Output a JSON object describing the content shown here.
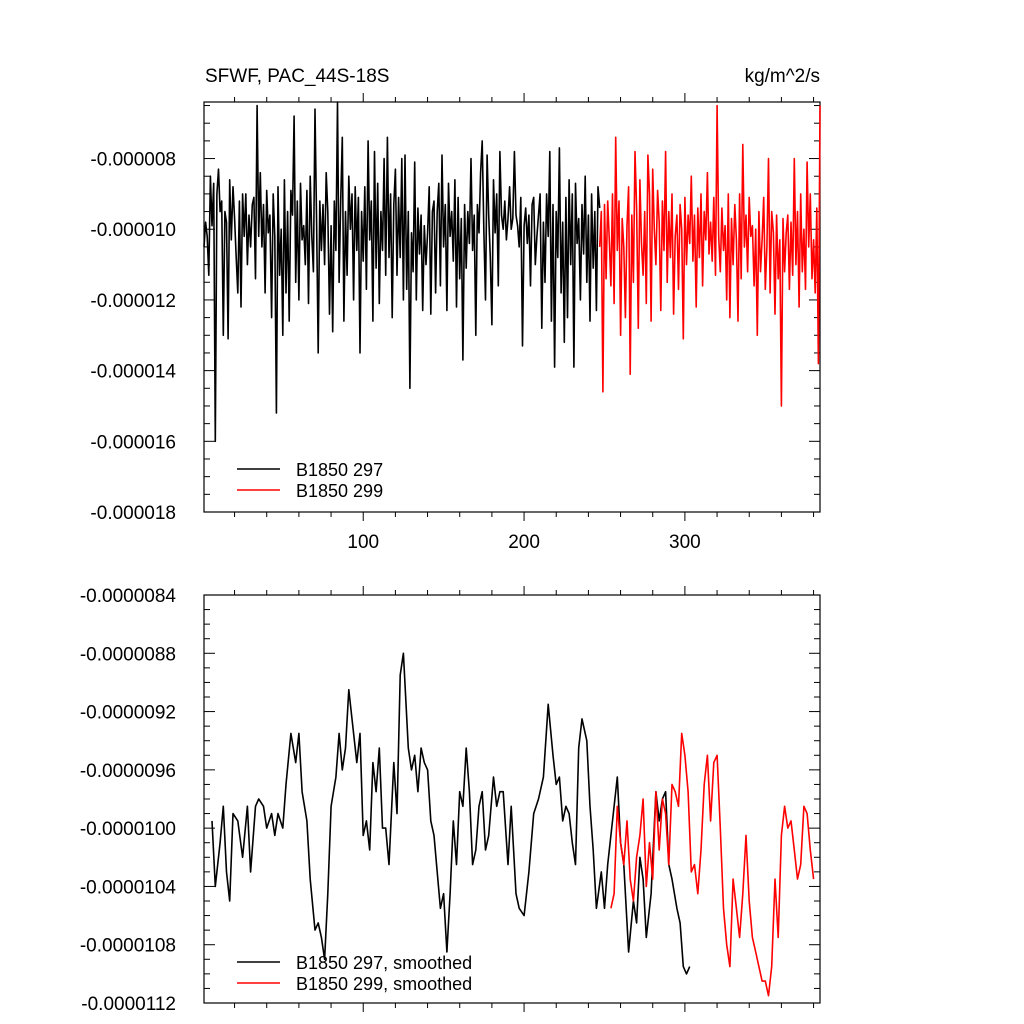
{
  "chart_data": [
    {
      "type": "line",
      "title": "SFWF, PAC_44S-18S",
      "units": "kg/m^2/s",
      "xlabel": "",
      "ylabel": "",
      "xlim": [
        1,
        384
      ],
      "ylim": [
        -1.8e-05,
        -6.4e-06
      ],
      "x_ticks": [
        100,
        200,
        300
      ],
      "x_tick_labels": [
        "100",
        "200",
        "300"
      ],
      "y_ticks": [
        -1.8e-05,
        -1.6e-05,
        -1.4e-05,
        -1.2e-05,
        -1e-05,
        -8e-06
      ],
      "y_tick_labels": [
        "-0.000018",
        "-0.000016",
        "-0.000014",
        "-0.000012",
        "-0.000010",
        "-0.000008"
      ],
      "legend_position": "bottom-left",
      "series": [
        {
          "name": "B1850 297",
          "color": "#000000",
          "x_start": 1,
          "values": [
            -10.5,
            -9.8,
            -10.2,
            -11.3,
            -8.5,
            -9.9,
            -8.7,
            -16.0,
            -9.0,
            -8.3,
            -9.5,
            -9.2,
            -13.0,
            -9.5,
            -9.8,
            -13.1,
            -8.6,
            -10.3,
            -8.8,
            -9.7,
            -10.8,
            -11.8,
            -9.2,
            -12.2,
            -9.0,
            -10.2,
            -9.0,
            -11.0,
            -9.6,
            -10.5,
            -9.3,
            -9.1,
            -11.4,
            -6.5,
            -10.2,
            -8.4,
            -10.5,
            -9.3,
            -11.8,
            -8.9,
            -10.1,
            -9.6,
            -12.5,
            -9.0,
            -10.2,
            -15.2,
            -8.8,
            -11.3,
            -10.0,
            -13.0,
            -8.6,
            -11.8,
            -9.5,
            -12.6,
            -8.9,
            -9.6,
            -6.8,
            -11.5,
            -9.2,
            -12.0,
            -8.7,
            -10.3,
            -9.9,
            -11.0,
            -8.9,
            -12.1,
            -8.5,
            -10.2,
            -11.2,
            -6.6,
            -9.8,
            -13.5,
            -9.2,
            -10.6,
            -9.3,
            -11.0,
            -8.4,
            -9.5,
            -12.4,
            -9.9,
            -12.9,
            -9.2,
            -10.6,
            -6.4,
            -11.5,
            -9.2,
            -7.4,
            -12.6,
            -9.5,
            -11.3,
            -8.5,
            -10.0,
            -9.0,
            -12.0,
            -8.8,
            -10.6,
            -9.1,
            -13.5,
            -9.5,
            -10.9,
            -8.8,
            -11.7,
            -7.5,
            -10.3,
            -9.2,
            -12.6,
            -7.8,
            -11.1,
            -8.7,
            -12.1,
            -9.5,
            -10.6,
            -8.0,
            -11.3,
            -7.4,
            -10.8,
            -9.0,
            -12.5,
            -9.3,
            -8.3,
            -11.3,
            -9.1,
            -10.8,
            -8.0,
            -12.0,
            -7.9,
            -11.7,
            -9.5,
            -14.5,
            -10.1,
            -11.2,
            -8.1,
            -12.0,
            -9.4,
            -10.7,
            -9.6,
            -12.3,
            -9.9,
            -11.0,
            -10.1,
            -8.8,
            -12.4,
            -9.5,
            -9.2,
            -11.8,
            -9.5,
            -8.7,
            -11.6,
            -7.9,
            -10.5,
            -9.3,
            -12.3,
            -8.7,
            -10.2,
            -9.5,
            -10.9,
            -8.6,
            -12.2,
            -9.1,
            -11.4,
            -9.7,
            -13.7,
            -9.3,
            -11.1,
            -9.5,
            -10.4,
            -8.0,
            -10.6,
            -9.6,
            -13.0,
            -9.3,
            -10.1,
            -8.4,
            -7.5,
            -10.1,
            -12.0,
            -7.9,
            -9.6,
            -10.8,
            -12.7,
            -8.6,
            -10.1,
            -9.0,
            -11.6,
            -7.8,
            -9.6,
            -10.0,
            -9.2,
            -10.3,
            -9.7,
            -8.8,
            -10.0,
            -9.7,
            -7.8,
            -9.6,
            -9.9,
            -10.5,
            -9.1,
            -13.3,
            -9.9,
            -9.4,
            -10.4,
            -9.6,
            -11.6,
            -9.3,
            -9.1,
            -11.0,
            -10.2,
            -9.6,
            -9.0,
            -12.8,
            -9.8,
            -11.5,
            -9.0,
            -10.2,
            -7.8,
            -12.6,
            -9.3,
            -13.9,
            -9.5,
            -10.8,
            -7.7,
            -11.8,
            -9.8,
            -13.2,
            -9.1,
            -12.5,
            -8.6,
            -11.0,
            -9.0,
            -13.9,
            -8.7,
            -10.4,
            -9.7,
            -12.0,
            -9.3,
            -10.7,
            -8.5,
            -11.5,
            -9.6,
            -12.6,
            -9.0,
            -11.1,
            -9.5,
            -12.3,
            -8.8,
            -9.4
          ]
        },
        {
          "name": "B1850 299",
          "color": "#ff0000",
          "x_start": 247,
          "values": [
            -10.5,
            -9.5,
            -14.6,
            -9.3,
            -11.4,
            -9.2,
            -10.3,
            -11.6,
            -9.0,
            -12.1,
            -7.4,
            -10.6,
            -9.2,
            -13.0,
            -9.7,
            -10.5,
            -12.5,
            -9.9,
            -8.8,
            -14.1,
            -9.6,
            -11.5,
            -7.8,
            -9.4,
            -12.8,
            -8.6,
            -10.4,
            -11.3,
            -9.5,
            -12.1,
            -7.9,
            -9.0,
            -12.6,
            -8.3,
            -10.0,
            -11.0,
            -8.9,
            -9.8,
            -12.3,
            -9.2,
            -10.6,
            -7.8,
            -11.5,
            -9.5,
            -10.8,
            -9.0,
            -12.4,
            -10.2,
            -9.6,
            -11.7,
            -9.3,
            -10.0,
            -13.1,
            -9.1,
            -11.0,
            -9.6,
            -10.4,
            -8.5,
            -10.9,
            -9.6,
            -12.2,
            -9.4,
            -10.8,
            -9.0,
            -11.6,
            -9.5,
            -10.3,
            -8.4,
            -10.7,
            -9.8,
            -10.9,
            -9.1,
            -11.3,
            -6.5,
            -10.2,
            -11.2,
            -9.4,
            -10.6,
            -9.9,
            -12.0,
            -9.0,
            -12.5,
            -9.7,
            -11.0,
            -9.3,
            -10.3,
            -12.6,
            -9.0,
            -11.4,
            -7.6,
            -10.5,
            -9.6,
            -11.2,
            -9.1,
            -10.2,
            -9.9,
            -11.6,
            -10.0,
            -13.0,
            -9.5,
            -11.2,
            -10.3,
            -9.1,
            -11.7,
            -10.5,
            -8.0,
            -11.8,
            -9.5,
            -10.1,
            -12.4,
            -9.6,
            -11.4,
            -10.3,
            -15.0,
            -9.7,
            -11.2,
            -10.1,
            -9.6,
            -11.7,
            -9.8,
            -11.3,
            -8.0,
            -11.0,
            -9.5,
            -12.2,
            -9.0,
            -11.2,
            -10.0,
            -11.7,
            -8.1,
            -10.5,
            -9.0,
            -11.4,
            -10.3,
            -11.8,
            -9.4,
            -13.8,
            -6.5
          ]
        }
      ]
    },
    {
      "type": "line",
      "title": "",
      "xlabel": "",
      "ylabel": "",
      "xlim": [
        1,
        384
      ],
      "ylim": [
        -1.12e-05,
        -8.4e-06
      ],
      "x_ticks": [
        100,
        200,
        300
      ],
      "x_tick_labels": [
        "",
        "",
        ""
      ],
      "y_ticks": [
        -1.12e-05,
        -1.08e-05,
        -1.04e-05,
        -1e-05,
        -9.6e-06,
        -9.2e-06,
        -8.8e-06,
        -8.4e-06
      ],
      "y_tick_labels": [
        "-0.0000112",
        "-0.0000108",
        "-0.0000104",
        "-0.0000100",
        "-0.0000096",
        "-0.0000092",
        "-0.0000088",
        "-0.0000084"
      ],
      "legend_position": "bottom-left",
      "series": [
        {
          "name": "B1850 297, smoothed",
          "color": "#000000",
          "x": [
            6,
            8,
            11,
            13,
            15,
            17,
            19,
            22,
            25,
            28,
            30,
            33,
            35,
            38,
            40,
            43,
            45,
            47,
            50,
            52,
            55,
            58,
            60,
            62,
            65,
            67,
            70,
            72,
            74,
            76,
            78,
            80,
            83,
            85,
            87,
            89,
            91,
            93,
            96,
            98,
            100,
            102,
            104,
            106,
            108,
            110,
            112,
            114,
            116,
            119,
            121,
            123,
            125,
            128,
            130,
            132,
            134,
            136,
            138,
            140,
            142,
            144,
            146,
            148,
            150,
            152,
            154,
            156,
            158,
            160,
            162,
            164,
            166,
            168,
            170,
            172,
            174,
            176,
            178,
            181,
            183,
            185,
            187,
            190,
            192,
            195,
            197,
            200,
            203,
            206,
            209,
            212,
            215,
            218,
            220,
            222,
            224,
            226,
            228,
            230,
            232,
            234,
            236,
            239,
            241,
            243,
            245,
            248,
            250,
            252,
            255,
            258,
            260,
            262,
            265,
            268,
            270,
            272,
            274,
            276,
            279,
            282,
            284,
            286,
            288,
            290,
            292,
            295,
            297,
            299,
            301,
            303
          ],
          "values": [
            -9.95,
            -10.4,
            -10.1,
            -9.85,
            -10.3,
            -10.5,
            -9.9,
            -9.95,
            -10.2,
            -9.85,
            -10.3,
            -9.85,
            -9.8,
            -9.85,
            -10.0,
            -9.9,
            -10.05,
            -9.9,
            -10.0,
            -9.7,
            -9.35,
            -9.55,
            -9.35,
            -9.75,
            -9.95,
            -10.35,
            -10.7,
            -10.65,
            -10.75,
            -10.9,
            -10.45,
            -9.85,
            -9.65,
            -9.35,
            -9.6,
            -9.45,
            -9.05,
            -9.25,
            -9.55,
            -9.35,
            -10.05,
            -9.95,
            -10.15,
            -9.55,
            -9.75,
            -9.45,
            -10.0,
            -10.0,
            -10.25,
            -9.55,
            -9.9,
            -8.95,
            -8.8,
            -9.45,
            -9.6,
            -9.5,
            -9.75,
            -9.45,
            -9.55,
            -9.6,
            -9.95,
            -10.05,
            -10.3,
            -10.55,
            -10.45,
            -10.85,
            -10.45,
            -9.95,
            -10.25,
            -9.75,
            -9.85,
            -9.45,
            -9.75,
            -10.25,
            -10.15,
            -9.85,
            -9.75,
            -10.15,
            -10.05,
            -9.65,
            -9.85,
            -9.75,
            -9.75,
            -10.25,
            -9.85,
            -10.45,
            -10.55,
            -10.6,
            -10.3,
            -9.9,
            -9.8,
            -9.65,
            -9.15,
            -9.5,
            -9.7,
            -9.65,
            -9.95,
            -9.85,
            -9.9,
            -10.1,
            -10.25,
            -9.45,
            -9.25,
            -9.4,
            -9.85,
            -10.15,
            -10.55,
            -10.3,
            -10.55,
            -10.25,
            -9.95,
            -9.65,
            -10.1,
            -10.25,
            -10.85,
            -10.5,
            -10.65,
            -10.2,
            -10.35,
            -10.75,
            -10.45,
            -9.75,
            -9.95,
            -9.8,
            -9.75,
            -10.25,
            -10.35,
            -10.55,
            -10.65,
            -10.95,
            -11.0,
            -10.95
          ]
        },
        {
          "name": "B1850 299, smoothed",
          "color": "#ff0000",
          "x": [
            254,
            256,
            258,
            260,
            262,
            264,
            266,
            268,
            270,
            272,
            274,
            276,
            278,
            280,
            282,
            284,
            286,
            288,
            290,
            292,
            294,
            296,
            298,
            300,
            302,
            304,
            306,
            308,
            310,
            312,
            314,
            316,
            318,
            320,
            322,
            324,
            326,
            328,
            330,
            332,
            334,
            336,
            338,
            340,
            342,
            344,
            346,
            348,
            350,
            352,
            354,
            356,
            358,
            360,
            362,
            364,
            366,
            368,
            370,
            372,
            374,
            376,
            378,
            380
          ],
          "values": [
            -10.55,
            -10.45,
            -9.85,
            -10.1,
            -10.25,
            -9.95,
            -10.35,
            -10.5,
            -10.2,
            -10.05,
            -9.8,
            -10.4,
            -10.1,
            -10.35,
            -9.75,
            -10.15,
            -9.8,
            -9.9,
            -10.25,
            -9.7,
            -9.75,
            -9.85,
            -9.35,
            -9.5,
            -9.75,
            -10.3,
            -10.25,
            -10.45,
            -10.15,
            -9.7,
            -9.5,
            -9.95,
            -9.55,
            -9.5,
            -10.0,
            -10.55,
            -10.8,
            -10.95,
            -10.35,
            -10.55,
            -10.75,
            -10.45,
            -10.05,
            -10.5,
            -10.75,
            -10.85,
            -10.95,
            -11.05,
            -11.05,
            -11.15,
            -10.95,
            -10.35,
            -10.75,
            -10.05,
            -9.85,
            -10.0,
            -9.95,
            -10.15,
            -10.35,
            -10.25,
            -9.85,
            -9.9,
            -10.15,
            -10.35
          ]
        }
      ]
    }
  ]
}
